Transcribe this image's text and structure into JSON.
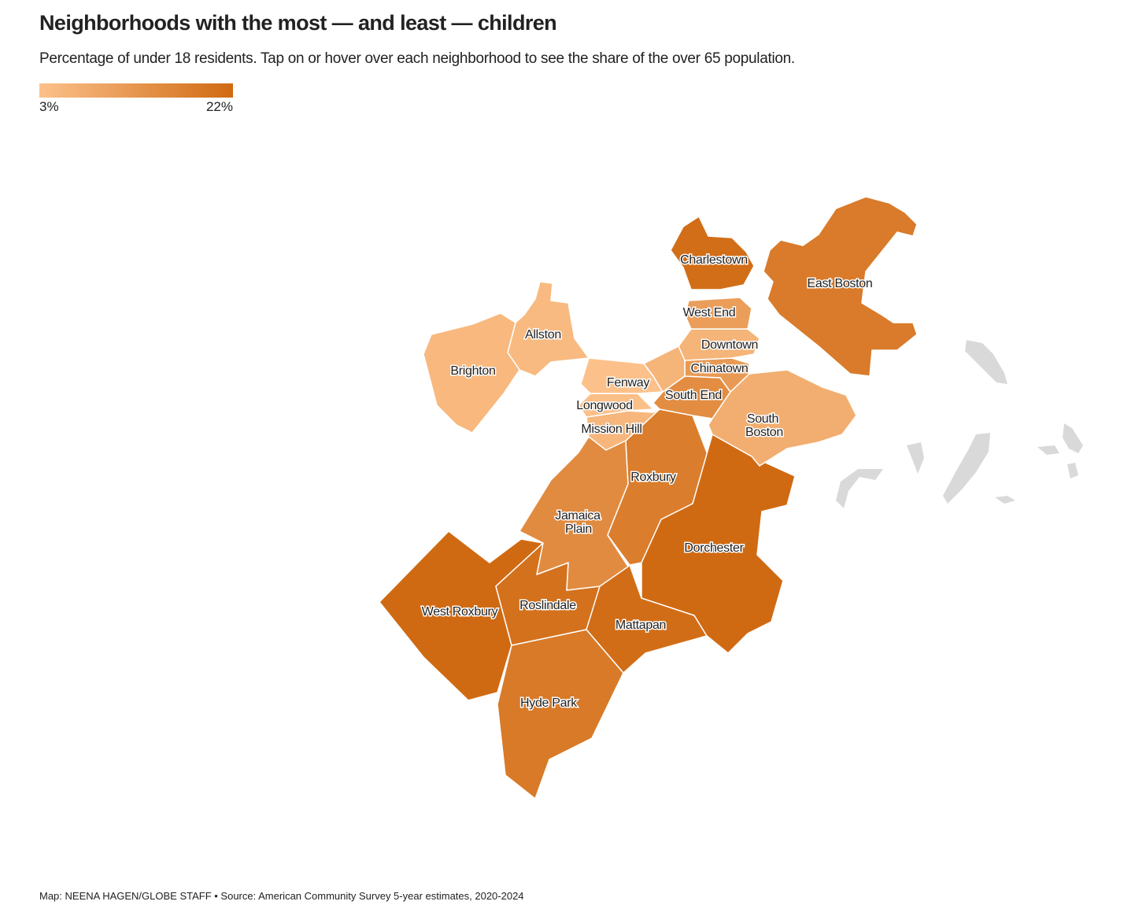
{
  "title": "Neighborhoods with the most — and least — children",
  "subtitle": "Percentage of under 18 residents. Tap on or hover over each neighborhood to see the share of the over 65 population.",
  "legend": {
    "min_label": "3%",
    "max_label": "22%",
    "min_value": 3,
    "max_value": 22,
    "color_low": "#fcc18a",
    "color_high": "#d06a12"
  },
  "neighborhoods": {
    "charlestown": {
      "label": "Charlestown",
      "level": 0.95
    },
    "east_boston": {
      "label": "East Boston",
      "level": 0.8
    },
    "west_end": {
      "label": "West End",
      "level": 0.4
    },
    "allston": {
      "label": "Allston",
      "level": 0.08
    },
    "brighton": {
      "label": "Brighton",
      "level": 0.1
    },
    "downtown": {
      "label": "Downtown",
      "level": 0.15
    },
    "chinatown": {
      "label": "Chinatown",
      "level": 0.45
    },
    "fenway": {
      "label": "Fenway",
      "level": 0.0
    },
    "south_end": {
      "label": "South End",
      "level": 0.6
    },
    "longwood": {
      "label": "Longwood",
      "level": 0.02
    },
    "south_boston": {
      "label_line1": "South",
      "label_line2": "Boston",
      "level": 0.22
    },
    "mission_hill": {
      "label": "Mission Hill",
      "level": 0.12
    },
    "roxbury": {
      "label": "Roxbury",
      "level": 0.78
    },
    "jamaica_plain": {
      "label_line1": "Jamaica",
      "label_line2": "Plain",
      "level": 0.62
    },
    "dorchester": {
      "label": "Dorchester",
      "level": 1.0
    },
    "west_roxbury": {
      "label": "West Roxbury",
      "level": 1.0
    },
    "roslindale": {
      "label": "Roslindale",
      "level": 0.92
    },
    "mattapan": {
      "label": "Mattapan",
      "level": 0.96
    },
    "hyde_park": {
      "label": "Hyde Park",
      "level": 0.82
    }
  },
  "credit": "Map: NEENA HAGEN/GLOBE STAFF • Source: American Community Survey 5-year estimates, 2020-2024"
}
